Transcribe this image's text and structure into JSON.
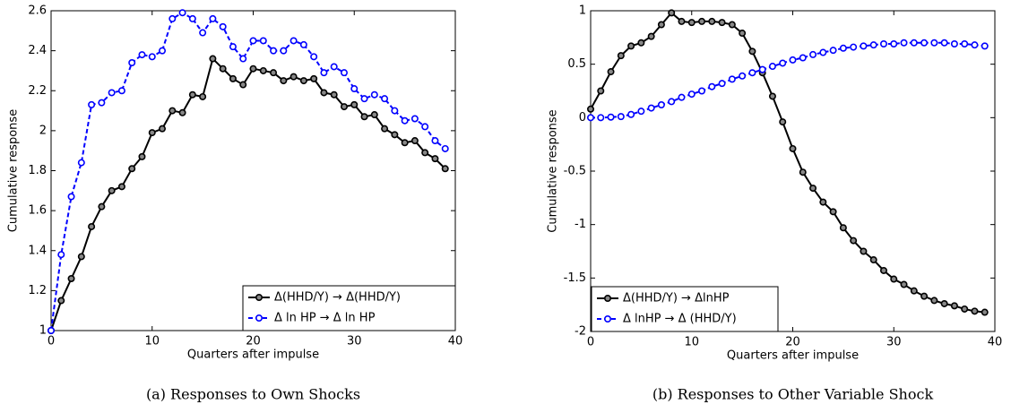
{
  "chart_data": [
    {
      "type": "line",
      "caption": "(a) Responses to Own Shocks",
      "xlabel": "Quarters after impulse",
      "ylabel": "Cumulative response",
      "x": [
        0,
        1,
        2,
        3,
        4,
        5,
        6,
        7,
        8,
        9,
        10,
        11,
        12,
        13,
        14,
        15,
        16,
        17,
        18,
        19,
        20,
        21,
        22,
        23,
        24,
        25,
        26,
        27,
        28,
        29,
        30,
        31,
        32,
        33,
        34,
        35,
        36,
        37,
        38,
        39
      ],
      "xlim": [
        0,
        40
      ],
      "xticks": [
        0,
        10,
        20,
        30,
        40
      ],
      "ylim": [
        1,
        2.6
      ],
      "yticks": [
        1,
        1.2,
        1.4,
        1.6,
        1.8,
        2,
        2.2,
        2.4,
        2.6
      ],
      "legend": "lower right",
      "series": [
        {
          "name": "Δ(HHD/Y) → Δ(HHD/Y)",
          "color": "#000000",
          "linestyle": "solid",
          "values": [
            1.0,
            1.15,
            1.26,
            1.37,
            1.52,
            1.62,
            1.7,
            1.72,
            1.81,
            1.87,
            1.99,
            2.01,
            2.1,
            2.09,
            2.18,
            2.17,
            2.36,
            2.31,
            2.26,
            2.23,
            2.31,
            2.3,
            2.29,
            2.25,
            2.27,
            2.25,
            2.26,
            2.19,
            2.18,
            2.12,
            2.13,
            2.07,
            2.08,
            2.01,
            1.98,
            1.94,
            1.95,
            1.89,
            1.86,
            1.81
          ]
        },
        {
          "name": "Δ ln HP → Δ ln HP",
          "color": "#0000ff",
          "linestyle": "dashed",
          "values": [
            1.0,
            1.38,
            1.67,
            1.84,
            2.13,
            2.14,
            2.19,
            2.2,
            2.34,
            2.38,
            2.37,
            2.4,
            2.56,
            2.59,
            2.56,
            2.49,
            2.56,
            2.52,
            2.42,
            2.36,
            2.45,
            2.45,
            2.4,
            2.4,
            2.45,
            2.43,
            2.37,
            2.29,
            2.32,
            2.29,
            2.21,
            2.16,
            2.18,
            2.16,
            2.1,
            2.05,
            2.06,
            2.02,
            1.95,
            1.91
          ]
        }
      ]
    },
    {
      "type": "line",
      "caption": "(b) Responses to Other Variable Shock",
      "xlabel": "Quarters after impulse",
      "ylabel": "Cumulative response",
      "x": [
        0,
        1,
        2,
        3,
        4,
        5,
        6,
        7,
        8,
        9,
        10,
        11,
        12,
        13,
        14,
        15,
        16,
        17,
        18,
        19,
        20,
        21,
        22,
        23,
        24,
        25,
        26,
        27,
        28,
        29,
        30,
        31,
        32,
        33,
        34,
        35,
        36,
        37,
        38,
        39
      ],
      "xlim": [
        0,
        40
      ],
      "xticks": [
        0,
        10,
        20,
        30,
        40
      ],
      "ylim": [
        -2,
        1
      ],
      "yticks": [
        -2,
        -1.5,
        -1,
        -0.5,
        0,
        0.5,
        1
      ],
      "legend": "lower left",
      "series": [
        {
          "name": "Δ(HHD/Y) → ΔlnHP",
          "color": "#000000",
          "linestyle": "solid",
          "values": [
            0.08,
            0.25,
            0.43,
            0.58,
            0.67,
            0.7,
            0.76,
            0.87,
            0.98,
            0.9,
            0.89,
            0.9,
            0.9,
            0.89,
            0.87,
            0.79,
            0.62,
            0.42,
            0.2,
            -0.04,
            -0.29,
            -0.51,
            -0.66,
            -0.79,
            -0.88,
            -1.03,
            -1.15,
            -1.25,
            -1.33,
            -1.43,
            -1.51,
            -1.56,
            -1.62,
            -1.67,
            -1.71,
            -1.74,
            -1.76,
            -1.79,
            -1.81,
            -1.82
          ]
        },
        {
          "name": "Δ lnHP → Δ (HHD/Y)",
          "color": "#0000ff",
          "linestyle": "dashed",
          "values": [
            0,
            0,
            0.005,
            0.01,
            0.03,
            0.06,
            0.09,
            0.12,
            0.15,
            0.19,
            0.22,
            0.25,
            0.29,
            0.32,
            0.36,
            0.39,
            0.42,
            0.45,
            0.48,
            0.51,
            0.54,
            0.56,
            0.59,
            0.61,
            0.63,
            0.65,
            0.66,
            0.67,
            0.68,
            0.69,
            0.69,
            0.7,
            0.7,
            0.7,
            0.7,
            0.7,
            0.69,
            0.69,
            0.68,
            0.67
          ]
        }
      ]
    }
  ]
}
